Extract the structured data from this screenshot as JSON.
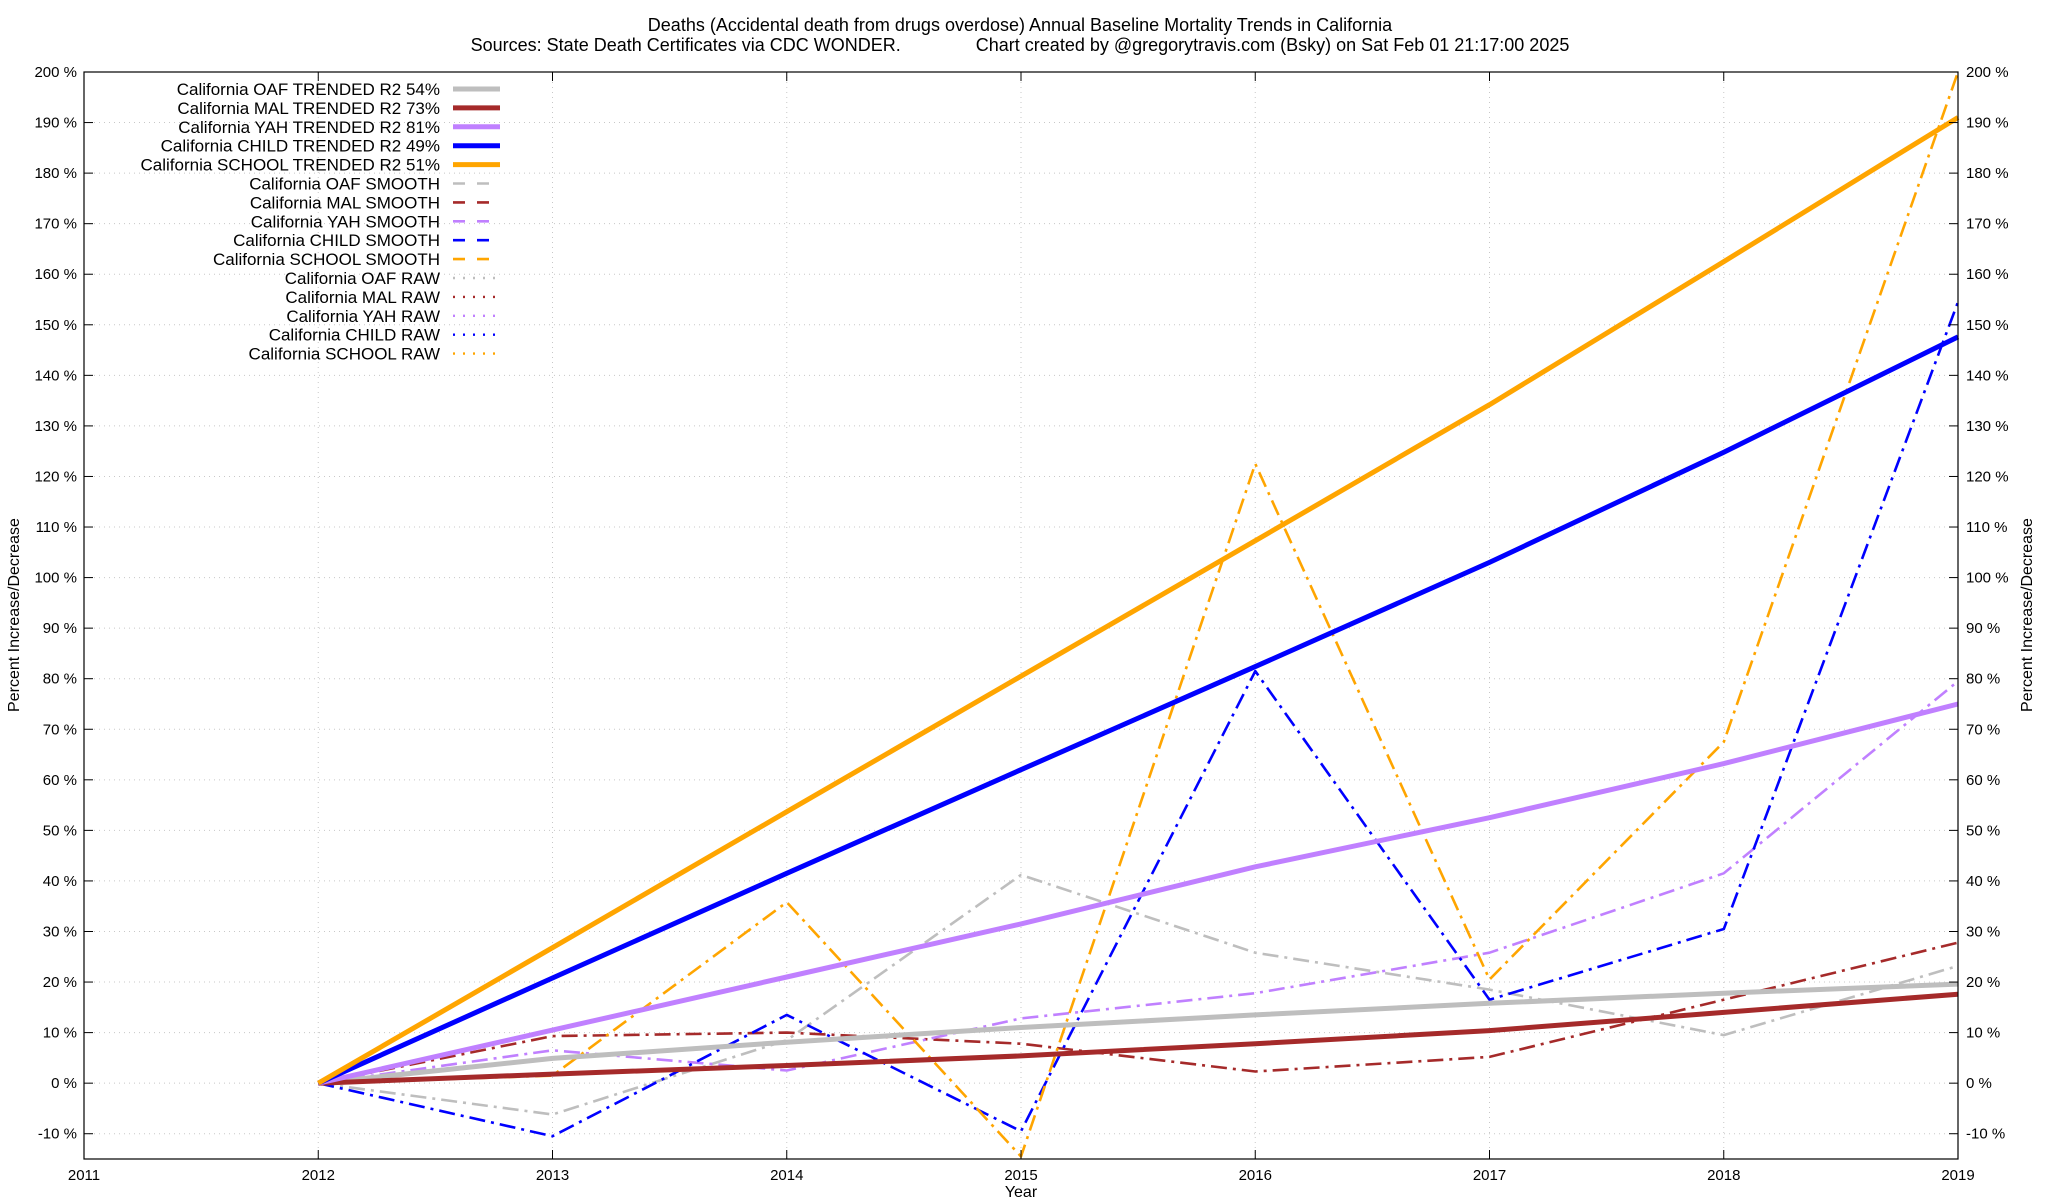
{
  "chart_data": {
    "type": "line",
    "title": "Deaths (Accidental death from drugs overdose)  Annual Baseline Mortality Trends in California",
    "subtitle": "Sources: State Death Certificates via CDC WONDER.               Chart created by @gregorytravis.com (Bsky) on Sat Feb 01 21:17:00 2025",
    "xlabel": "Year",
    "ylabel": "Percent Increase/Decrease",
    "ylabel_right": "Percent Increase/Decrease",
    "xlim": [
      2011,
      2019
    ],
    "ylim": [
      -15,
      200
    ],
    "x_ticks": [
      2011,
      2012,
      2013,
      2014,
      2015,
      2016,
      2017,
      2018,
      2019
    ],
    "x_tick_labels": [
      "2011",
      "2012",
      "2013",
      "2014",
      "2015",
      "2016",
      "2017",
      "2018",
      "2019"
    ],
    "y_ticks": [
      -10,
      0,
      10,
      20,
      30,
      40,
      50,
      60,
      70,
      80,
      90,
      100,
      110,
      120,
      130,
      140,
      150,
      160,
      170,
      180,
      190,
      200
    ],
    "y_tick_labels": [
      "-10 %",
      "0 %",
      "10 %",
      "20 %",
      "30 %",
      "40 %",
      "50 %",
      "60 %",
      "70 %",
      "80 %",
      "90 %",
      "100 %",
      "110 %",
      "120 %",
      "130 %",
      "140 %",
      "150 %",
      "160 %",
      "170 %",
      "180 %",
      "190 %",
      "200 %"
    ],
    "grid": true,
    "legend_position": "top-left",
    "series": [
      {
        "name": "California OAF TRENDED R2  54%",
        "style": "trend",
        "color": "#bebebe",
        "x": [
          2012,
          2013,
          2014,
          2015,
          2016,
          2017,
          2018,
          2019
        ],
        "y": [
          0,
          4.9,
          8.1,
          11.0,
          13.5,
          15.8,
          17.8,
          19.6
        ]
      },
      {
        "name": "California MAL TRENDED R2  73%",
        "style": "trend",
        "color": "#a52a2a",
        "x": [
          2012,
          2013,
          2014,
          2015,
          2016,
          2017,
          2018,
          2019
        ],
        "y": [
          0,
          1.8,
          3.5,
          5.4,
          7.8,
          10.4,
          14.0,
          17.6
        ]
      },
      {
        "name": "California YAH TRENDED R2  81%",
        "style": "trend",
        "color": "#c080ff",
        "x": [
          2012,
          2013,
          2014,
          2015,
          2016,
          2017,
          2018,
          2019
        ],
        "y": [
          0,
          10.5,
          21.0,
          31.5,
          42.8,
          52.5,
          63.2,
          75.0
        ]
      },
      {
        "name": "California CHILD TRENDED R2  49%",
        "style": "trend",
        "color": "#0000ff",
        "x": [
          2012,
          2013,
          2014,
          2015,
          2016,
          2017,
          2018,
          2019
        ],
        "y": [
          0,
          20.8,
          41.5,
          62.0,
          82.4,
          103.0,
          124.8,
          147.6
        ]
      },
      {
        "name": "California SCHOOL TRENDED R2  51%",
        "style": "trend",
        "color": "#ffa500",
        "x": [
          2012,
          2013,
          2014,
          2015,
          2016,
          2017,
          2018,
          2019
        ],
        "y": [
          0,
          26.8,
          53.7,
          80.5,
          107.3,
          134.2,
          162.5,
          191.0
        ]
      },
      {
        "name": "California OAF SMOOTH",
        "style": "smooth",
        "color": "#bebebe",
        "x": [
          2012,
          2013,
          2014,
          2015,
          2016,
          2017,
          2018,
          2019
        ],
        "y": [
          0,
          -6.2,
          8.5,
          41.2,
          25.8,
          18.5,
          9.5,
          23.2
        ]
      },
      {
        "name": "California MAL SMOOTH",
        "style": "smooth",
        "color": "#a52a2a",
        "x": [
          2012,
          2013,
          2014,
          2015,
          2016,
          2017,
          2018,
          2019
        ],
        "y": [
          0,
          9.3,
          10.0,
          7.8,
          2.3,
          5.2,
          16.5,
          27.8
        ]
      },
      {
        "name": "California YAH SMOOTH",
        "style": "smooth",
        "color": "#c080ff",
        "x": [
          2012,
          2013,
          2014,
          2015,
          2016,
          2017,
          2018,
          2019
        ],
        "y": [
          0,
          6.5,
          2.5,
          12.8,
          17.8,
          25.8,
          41.5,
          79.5
        ]
      },
      {
        "name": "California CHILD SMOOTH",
        "style": "smooth",
        "color": "#0000ff",
        "x": [
          2012,
          2013,
          2014,
          2015,
          2016,
          2017,
          2018,
          2019
        ],
        "y": [
          0,
          -10.5,
          13.5,
          -9.5,
          81.5,
          16.5,
          30.5,
          154.5
        ]
      },
      {
        "name": "California SCHOOL SMOOTH",
        "style": "smooth",
        "color": "#ffa500",
        "x": [
          2012,
          2013,
          2014,
          2015,
          2016,
          2017,
          2018,
          2019
        ],
        "y": [
          0,
          1.5,
          35.8,
          -14.5,
          122.5,
          20.5,
          67.5,
          200.0
        ]
      },
      {
        "name": "California OAF RAW",
        "style": "raw",
        "color": "#bebebe",
        "x": [],
        "y": []
      },
      {
        "name": "California MAL RAW",
        "style": "raw",
        "color": "#a52a2a",
        "x": [],
        "y": []
      },
      {
        "name": "California YAH RAW",
        "style": "raw",
        "color": "#c080ff",
        "x": [],
        "y": []
      },
      {
        "name": "California CHILD RAW",
        "style": "raw",
        "color": "#0000ff",
        "x": [],
        "y": []
      },
      {
        "name": "California SCHOOL RAW",
        "style": "raw",
        "color": "#ffa500",
        "x": [],
        "y": []
      }
    ]
  }
}
